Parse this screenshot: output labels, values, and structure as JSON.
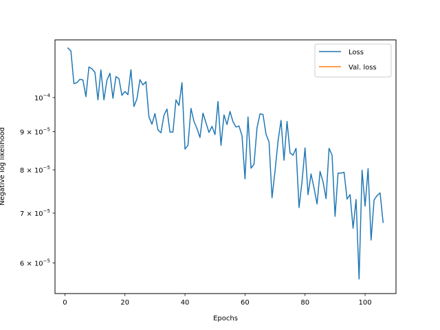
{
  "chart_data": {
    "type": "line",
    "title": "",
    "xlabel": "Epochs",
    "ylabel": "Negative log likelihood",
    "yscale": "log",
    "xlim": [
      -3.3,
      110.3
    ],
    "ylim": [
      5.46e-05,
      0.0001195
    ],
    "grid": false,
    "legend_position": "top-right",
    "x_ticks": [
      0,
      20,
      40,
      60,
      80,
      100
    ],
    "x_tick_labels": [
      "0",
      "20",
      "40",
      "60",
      "80",
      "100"
    ],
    "y_ticks": [
      6e-05,
      7e-05,
      8e-05,
      9e-05,
      0.0001
    ],
    "y_tick_labels": [
      {
        "mantissa": "6",
        "exp": "−5",
        "main": "6 × 10"
      },
      {
        "mantissa": "7",
        "exp": "−5",
        "main": "7 × 10"
      },
      {
        "mantissa": "8",
        "exp": "−5",
        "main": "8 × 10"
      },
      {
        "mantissa": "9",
        "exp": "−5",
        "main": "9 × 10"
      },
      {
        "mantissa": "",
        "exp": "−4",
        "main": "10"
      }
    ],
    "series": [
      {
        "name": "Loss",
        "color": "#1f77b4",
        "x": [
          1,
          2,
          3,
          4,
          5,
          6,
          7,
          8,
          9,
          10,
          11,
          12,
          13,
          14,
          15,
          16,
          17,
          18,
          19,
          20,
          21,
          22,
          23,
          24,
          25,
          26,
          27,
          28,
          29,
          30,
          31,
          32,
          33,
          34,
          35,
          36,
          37,
          38,
          39,
          40,
          41,
          42,
          43,
          44,
          45,
          46,
          47,
          48,
          49,
          50,
          51,
          52,
          53,
          54,
          55,
          56,
          57,
          58,
          59,
          60,
          61,
          62,
          63,
          64,
          65,
          66,
          67,
          68,
          69,
          70,
          71,
          72,
          73,
          74,
          75,
          76,
          77,
          78,
          79,
          80,
          81,
          82,
          83,
          84,
          85,
          86,
          87,
          88,
          89,
          90,
          91,
          92,
          93,
          94,
          95,
          96,
          97,
          98,
          99,
          100,
          101,
          102,
          103,
          104,
          105,
          106
        ],
        "values": [
          0.0001165,
          0.0001155,
          0.0001044,
          0.0001047,
          0.0001058,
          0.0001056,
          0.0001003,
          0.0001099,
          0.0001093,
          0.0001081,
          9.93e-05,
          0.0001089,
          9.93e-05,
          0.0001055,
          0.0001078,
          9.98e-05,
          0.0001067,
          0.000106,
          0.0001007,
          0.0001019,
          0.0001009,
          0.000109,
          9.73e-05,
          9.96e-05,
          0.0001057,
          0.000104,
          0.000105,
          9.42e-05,
          9.21e-05,
          9.52e-05,
          9.05e-05,
          8.97e-05,
          9.47e-05,
          9.65e-05,
          8.99e-05,
          8.99e-05,
          9.93e-05,
          9.76e-05,
          0.0001047,
          8.53e-05,
          8.63e-05,
          9.67e-05,
          9.29e-05,
          9.09e-05,
          8.84e-05,
          9.53e-05,
          9.25e-05,
          8.98e-05,
          9.15e-05,
          8.92e-05,
          9.88e-05,
          8.63e-05,
          9.48e-05,
          9.2e-05,
          9.58e-05,
          9.28e-05,
          9.13e-05,
          9.16e-05,
          8.89e-05,
          7.78e-05,
          9.42e-05,
          8.04e-05,
          8.14e-05,
          9.11e-05,
          9.51e-05,
          9.49e-05,
          8.93e-05,
          8.72e-05,
          7.34e-05,
          7.97e-05,
          8.74e-05,
          9.32e-05,
          8.24e-05,
          9.29e-05,
          8.43e-05,
          8.37e-05,
          8.55e-05,
          7.12e-05,
          7.72e-05,
          8.56e-05,
          7.41e-05,
          7.9e-05,
          7.56e-05,
          7.2e-05,
          7.96e-05,
          7.71e-05,
          7.32e-05,
          8.55e-05,
          8.37e-05,
          6.93e-05,
          7.92e-05,
          7.92e-05,
          7.94e-05,
          7.31e-05,
          7.41e-05,
          6.68e-05,
          7.3e-05,
          5.71e-05,
          7.99e-05,
          7.15e-05,
          8.03e-05,
          6.44e-05,
          7.29e-05,
          7.39e-05,
          7.45e-05,
          6.8e-05
        ]
      },
      {
        "name": "Val. loss",
        "color": "#ff7f0e",
        "x": [],
        "values": []
      }
    ]
  }
}
